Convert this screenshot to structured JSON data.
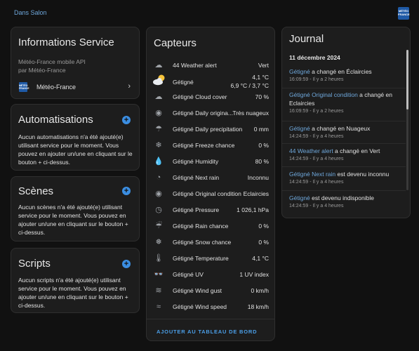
{
  "header": {
    "area_link": "Dans Salon",
    "brand_logo": "MÉTÉO FRANCE"
  },
  "info": {
    "title": "Informations Service",
    "subtitle_line1": "Météo-France mobile API",
    "subtitle_line2": "par Météo-France",
    "link_label": "Météo-France",
    "link_icon": "chevron-right-icon"
  },
  "automations": {
    "title": "Automatisations",
    "text": "Aucun automatisations n'a été ajouté(e) utilisant service pour le moment. Vous pouvez en ajouter un/une en cliquant sur le bouton + ci-dessus."
  },
  "scenes": {
    "title": "Scènes",
    "text": "Aucun scènes n'a été ajouté(e) utilisant service pour le moment. Vous pouvez en ajouter un/une en cliquant sur le bouton + ci-dessus."
  },
  "scripts": {
    "title": "Scripts",
    "text": "Aucun scripts n'a été ajouté(e) utilisant service pour le moment. Vous pouvez en ajouter un/une en cliquant sur le bouton + ci-dessus."
  },
  "capteurs": {
    "title": "Capteurs",
    "sensors": [
      {
        "icon": "cloud-alert-icon",
        "glyph": "☁",
        "name": "44 Weather alert",
        "value": "Vert"
      },
      {
        "icon": "partly-sunny-icon",
        "glyph": "",
        "name": "Gétigné",
        "value": "4,1 °C",
        "value2": "6,9 °C / 3,7 °C"
      },
      {
        "icon": "cloud-cover-icon",
        "glyph": "☁",
        "name": "Gétigné Cloud cover",
        "value": "70 %"
      },
      {
        "icon": "eye-icon",
        "glyph": "◉",
        "name": "Gétigné Daily origina...",
        "value": "Très nuageux"
      },
      {
        "icon": "cloud-rain-icon",
        "glyph": "☂",
        "name": "Gétigné Daily precipitation",
        "value": "0 mm"
      },
      {
        "icon": "snowflake-icon",
        "glyph": "❄",
        "name": "Gétigné Freeze chance",
        "value": "0 %"
      },
      {
        "icon": "water-drop-icon",
        "glyph": "💧",
        "name": "Gétigné Humidity",
        "value": "80 %"
      },
      {
        "icon": "clock-icon",
        "glyph": "◔",
        "name": "Gétigné Next rain",
        "value": "Inconnu"
      },
      {
        "icon": "eye-icon",
        "glyph": "◉",
        "name": "Gétigné Original condition",
        "value": "Eclaircies"
      },
      {
        "icon": "gauge-icon",
        "glyph": "◷",
        "name": "Gétigné Pressure",
        "value": "1 026,1 hPa"
      },
      {
        "icon": "rain-icon",
        "glyph": "☔",
        "name": "Gétigné Rain chance",
        "value": "0 %"
      },
      {
        "icon": "snow-icon",
        "glyph": "❅",
        "name": "Gétigné Snow chance",
        "value": "0 %"
      },
      {
        "icon": "thermometer-icon",
        "glyph": "🌡",
        "name": "Gétigné Temperature",
        "value": "4,1 °C"
      },
      {
        "icon": "sunglasses-icon",
        "glyph": "👓",
        "name": "Gétigné UV",
        "value": "1 UV index"
      },
      {
        "icon": "wind-gust-icon",
        "glyph": "≋",
        "name": "Gétigné Wind gust",
        "value": "0 km/h"
      },
      {
        "icon": "wind-icon",
        "glyph": "≈",
        "name": "Gétigné Wind speed",
        "value": "18 km/h"
      }
    ],
    "add_button": "AJOUTER AU TABLEAU DE BORD"
  },
  "journal": {
    "title": "Journal",
    "date": "11 décembre 2024",
    "entries": [
      {
        "link": "Gétigné",
        "text": " a changé en Éclaircies",
        "time": "16:09:59 - Il y a 2 heures"
      },
      {
        "link": "Gétigné Original condition",
        "text": " a changé en Eclaircies",
        "time": "16:09:59 - Il y a 2 heures"
      },
      {
        "link": "Gétigné",
        "text": " a changé en Nuageux",
        "time": "14:24:59 - Il y a 4 heures"
      },
      {
        "link": "44 Weather alert",
        "text": " a changé en Vert",
        "time": "14:24:59 - Il y a 4 heures"
      },
      {
        "link": "Gétigné Next rain",
        "text": " est devenu inconnu",
        "time": "14:24:59 - Il y a 4 heures"
      },
      {
        "link": "Gétigné",
        "text": " est devenu indisponible",
        "time": "14:24:59 - Il y a 4 heures"
      }
    ]
  },
  "colors": {
    "accent": "#3b8ee2",
    "link": "#6fa8dc",
    "card_bg": "#1d1d1d",
    "page_bg": "#111111"
  }
}
